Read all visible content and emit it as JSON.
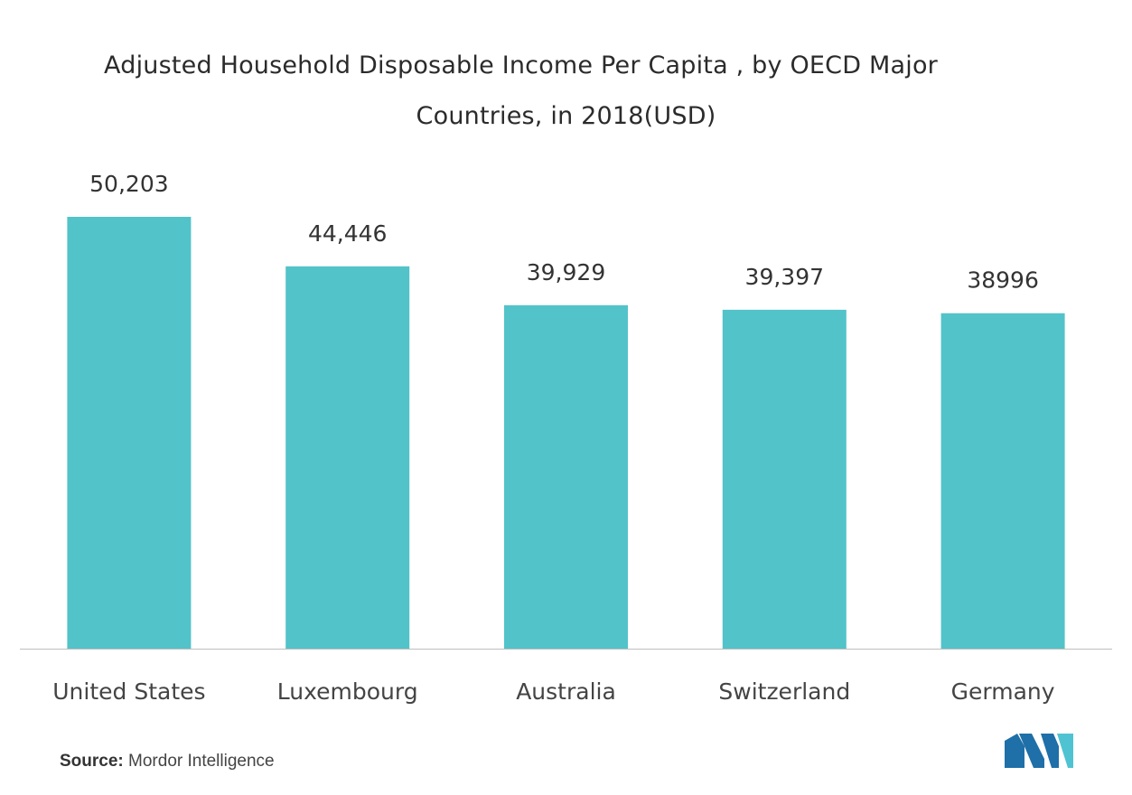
{
  "chart_data": {
    "type": "bar",
    "title_line1": "Adjusted  Household Disposable Income Per Capita , by OECD Major",
    "title_line2": "Countries, in 2018(USD)",
    "categories": [
      "United States",
      "Luxembourg",
      "Australia",
      "Switzerland",
      "Germany"
    ],
    "values": [
      50203,
      44446,
      39929,
      39397,
      38996
    ],
    "value_labels": [
      "50,203",
      "44,446",
      "39,929",
      "39,397",
      "38996"
    ],
    "bar_color": "#52C3C9",
    "ylim": [
      0,
      63000
    ],
    "grid": false,
    "legend": "none",
    "xlabel": "",
    "ylabel": ""
  },
  "source": {
    "label": "Source:",
    "text": "Mordor Intelligence"
  },
  "logo": {
    "icon": "mordor-intelligence-logo",
    "colors": [
      "#1F6FA8",
      "#4FC3D1"
    ]
  }
}
